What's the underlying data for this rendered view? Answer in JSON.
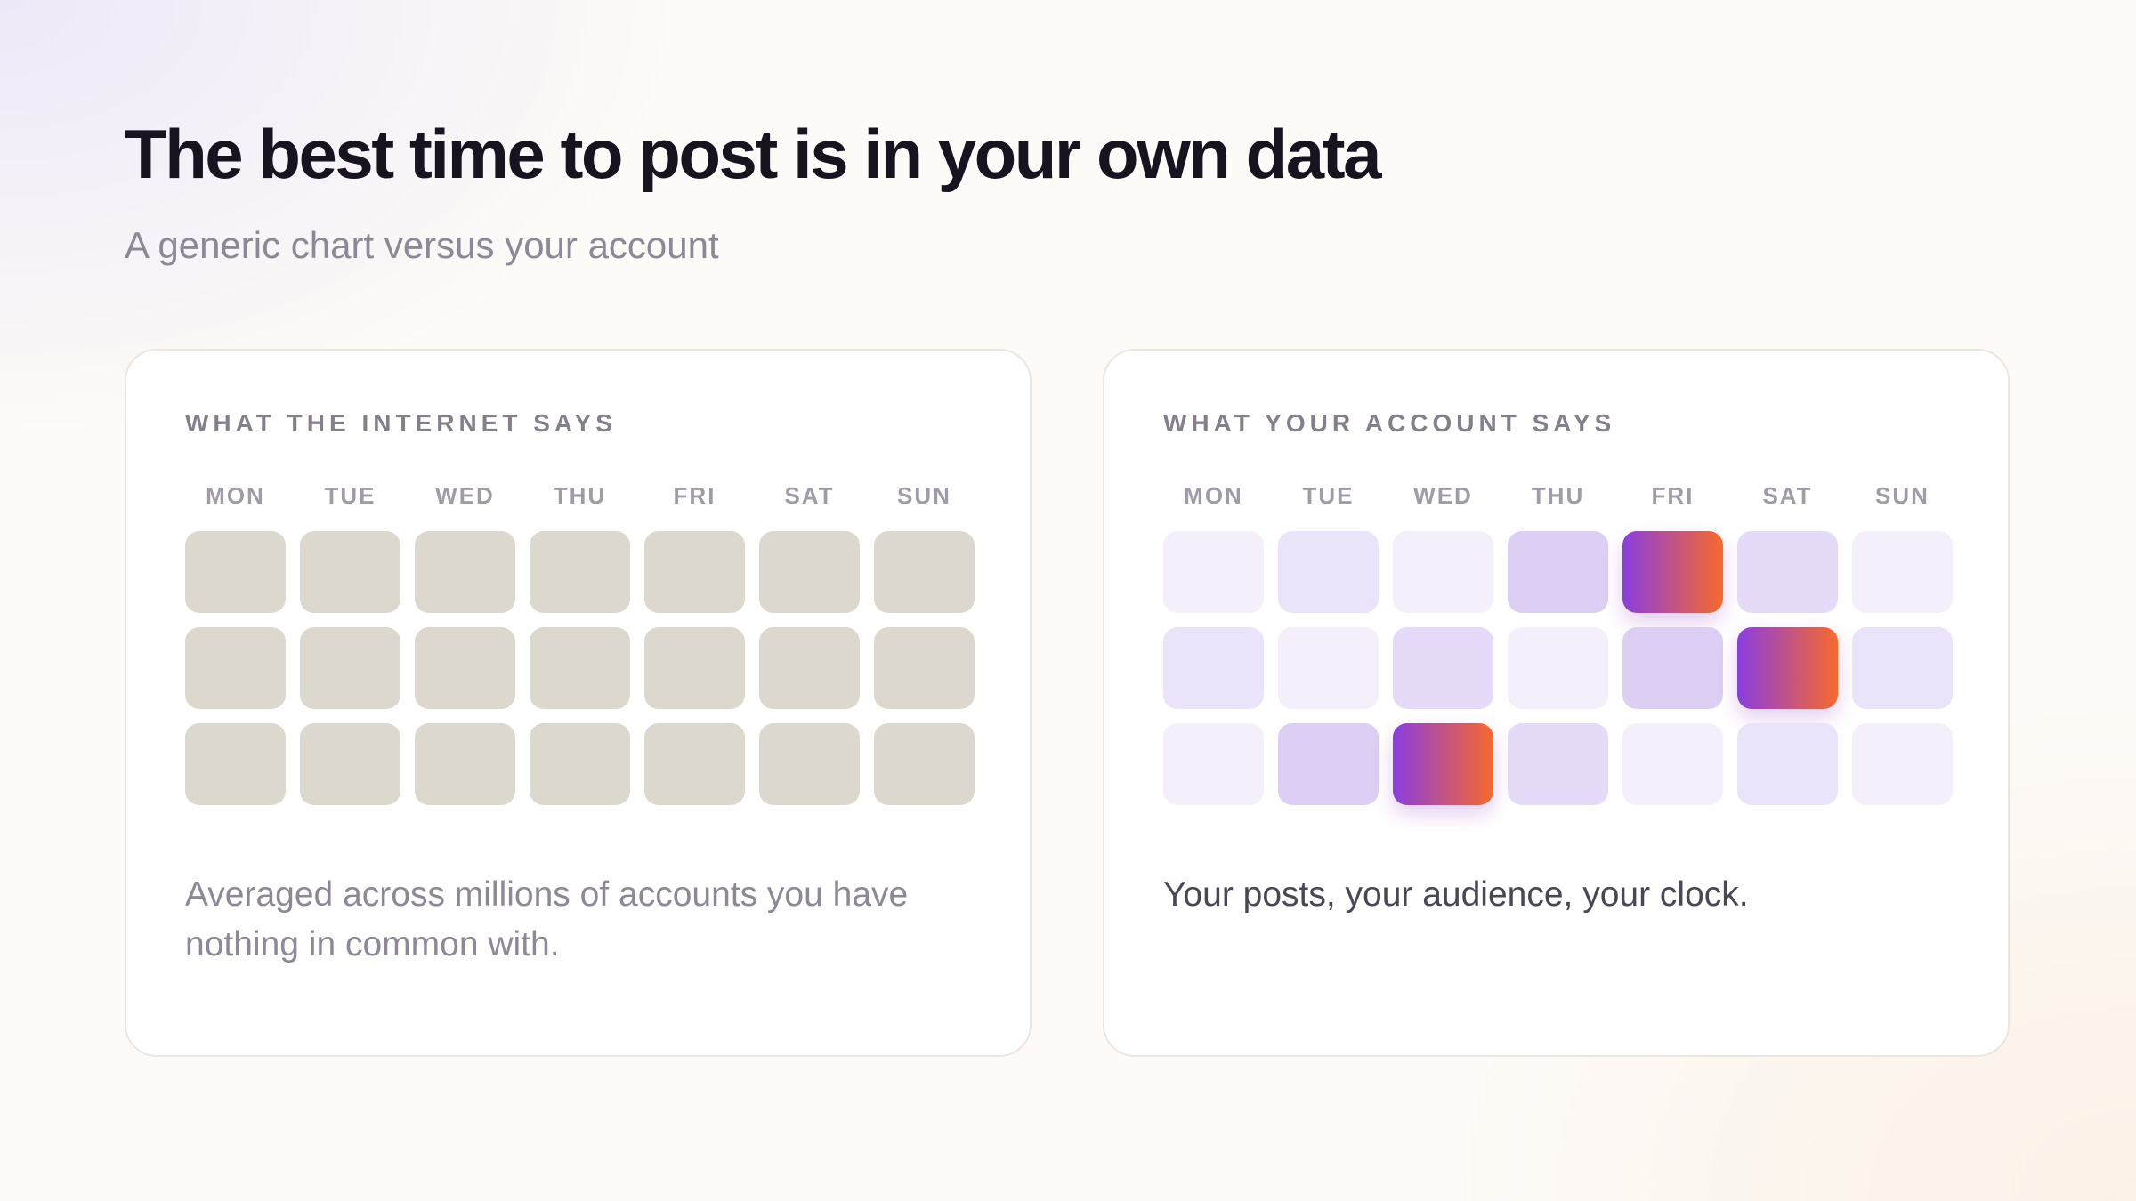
{
  "header": {
    "title": "The best time to post is in your own data",
    "subtitle": "A generic chart versus your account"
  },
  "colors": {
    "generic_cell": "#ddd8ce",
    "intensity_scale": [
      "#f4effb",
      "#ebe3fa",
      "#e5dbf8",
      "#dccff3"
    ],
    "peak_gradient_start": "#8a3ee0",
    "peak_gradient_end": "#f7692b"
  },
  "chart_data": [
    {
      "type": "heatmap",
      "title": "WHAT THE INTERNET SAYS",
      "days": [
        "MON",
        "TUE",
        "WED",
        "THU",
        "FRI",
        "SAT",
        "SUN"
      ],
      "rows": 3,
      "values": [
        [
          0,
          0,
          0,
          0,
          0,
          0,
          0
        ],
        [
          0,
          0,
          0,
          0,
          0,
          0,
          0
        ],
        [
          0,
          0,
          0,
          0,
          0,
          0,
          0
        ]
      ],
      "style": "uniform",
      "caption": "Averaged across millions of accounts you have\nnothing in common with."
    },
    {
      "type": "heatmap",
      "title": "WHAT YOUR ACCOUNT SAYS",
      "days": [
        "MON",
        "TUE",
        "WED",
        "THU",
        "FRI",
        "SAT",
        "SUN"
      ],
      "rows": 3,
      "values": [
        [
          0,
          1,
          0,
          3,
          4,
          2,
          0
        ],
        [
          1,
          0,
          2,
          0,
          3,
          4,
          1
        ],
        [
          0,
          3,
          4,
          2,
          0,
          1,
          0
        ]
      ],
      "style": "intensity",
      "caption": "Your posts, your audience, your clock."
    }
  ]
}
